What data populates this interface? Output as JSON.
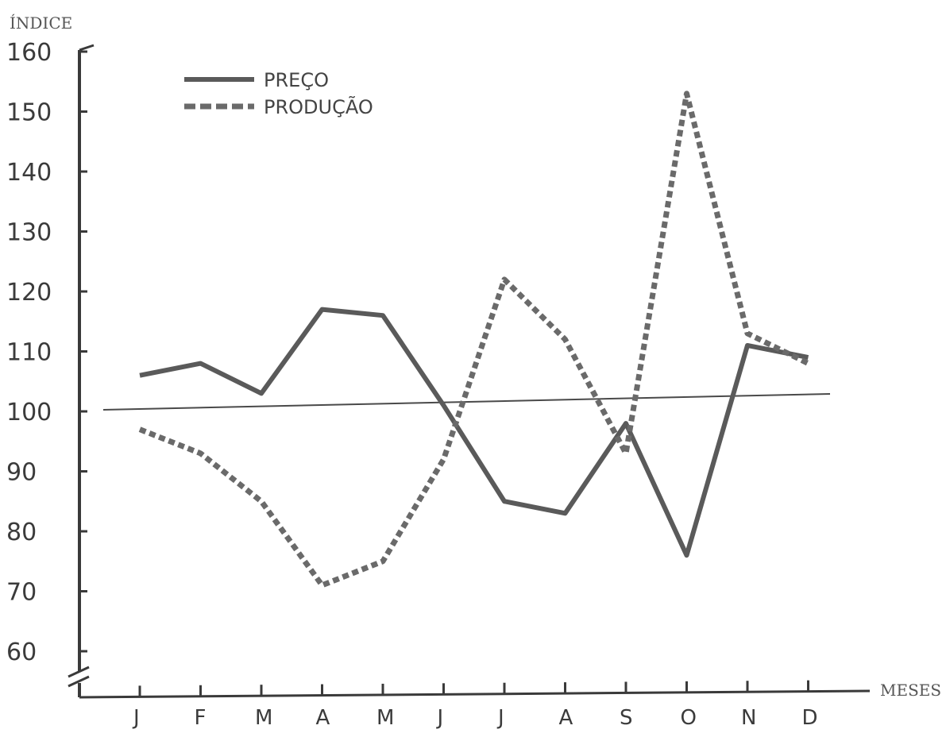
{
  "chart_data": {
    "type": "line",
    "ylabel": "ÍNDICE",
    "xlabel": "MESES",
    "categories": [
      "J",
      "F",
      "M",
      "A",
      "M",
      "J",
      "J",
      "A",
      "S",
      "O",
      "N",
      "D"
    ],
    "yticks": [
      160,
      150,
      140,
      130,
      120,
      110,
      100,
      90,
      80,
      70,
      60
    ],
    "ylim": [
      55,
      162
    ],
    "y_axis_break": true,
    "reference_line": 100,
    "legend_position": "top-left",
    "grid": false,
    "series": [
      {
        "name": "PREÇO",
        "style": "solid",
        "color": "#5a5a5a",
        "values": [
          106,
          108,
          103,
          117,
          116,
          101,
          85,
          83,
          98,
          76,
          111,
          109
        ]
      },
      {
        "name": "PRODUÇÃO",
        "style": "dashed",
        "color": "#6a6a6a",
        "values": [
          97,
          93,
          85,
          71,
          75,
          92,
          122,
          112,
          93,
          153,
          113,
          108
        ]
      }
    ]
  }
}
